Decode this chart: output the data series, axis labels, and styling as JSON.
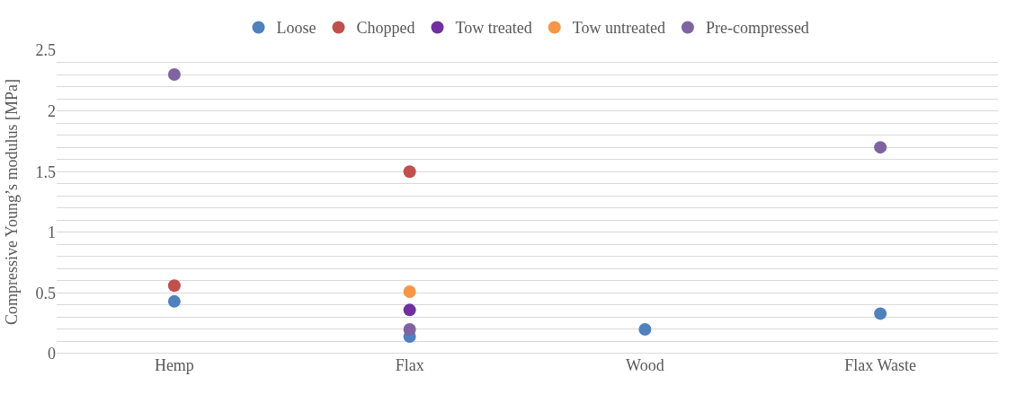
{
  "chart_data": {
    "type": "scatter",
    "ylabel": "Compressive Young’s modulus [MPa]",
    "categories": [
      "Hemp",
      "Flax",
      "Wood",
      "Flax Waste"
    ],
    "series": [
      {
        "name": "Loose",
        "color": "#4f81bd",
        "values": [
          0.43,
          0.14,
          0.2,
          0.33
        ]
      },
      {
        "name": "Chopped",
        "color": "#c0504d",
        "values": [
          0.56,
          1.5,
          null,
          null
        ]
      },
      {
        "name": "Tow treated",
        "color": "#7030a0",
        "values": [
          null,
          0.36,
          null,
          null
        ]
      },
      {
        "name": "Tow untreated",
        "color": "#f79646",
        "values": [
          null,
          0.51,
          null,
          null
        ]
      },
      {
        "name": "Pre-compressed",
        "color": "#8064a2",
        "values": [
          2.3,
          0.2,
          null,
          1.7
        ]
      }
    ],
    "ylim": [
      0,
      2.5
    ],
    "yticks": [
      0,
      {
        "value": 0.1,
        "label": null
      },
      {
        "value": 0.2,
        "label": null
      },
      {
        "value": 0.3,
        "label": null
      },
      {
        "value": 0.4,
        "label": null
      },
      0.5,
      {
        "value": 0.6,
        "label": null
      },
      {
        "value": 0.7,
        "label": null
      },
      {
        "value": 0.8,
        "label": null
      },
      {
        "value": 0.9,
        "label": null
      },
      1,
      {
        "value": 1.1,
        "label": null
      },
      {
        "value": 1.2,
        "label": null
      },
      {
        "value": 1.3,
        "label": null
      },
      {
        "value": 1.4,
        "label": null
      },
      1.5,
      {
        "value": 1.6,
        "label": null
      },
      {
        "value": 1.7,
        "label": null
      },
      {
        "value": 1.8,
        "label": null
      },
      {
        "value": 1.9,
        "label": null
      },
      2,
      {
        "value": 2.1,
        "label": null
      },
      {
        "value": 2.2,
        "label": null
      },
      {
        "value": 2.3,
        "label": null
      },
      {
        "value": 2.4,
        "label": null
      },
      2.5
    ],
    "grid": "y",
    "legend": "top",
    "marker": "circle"
  }
}
